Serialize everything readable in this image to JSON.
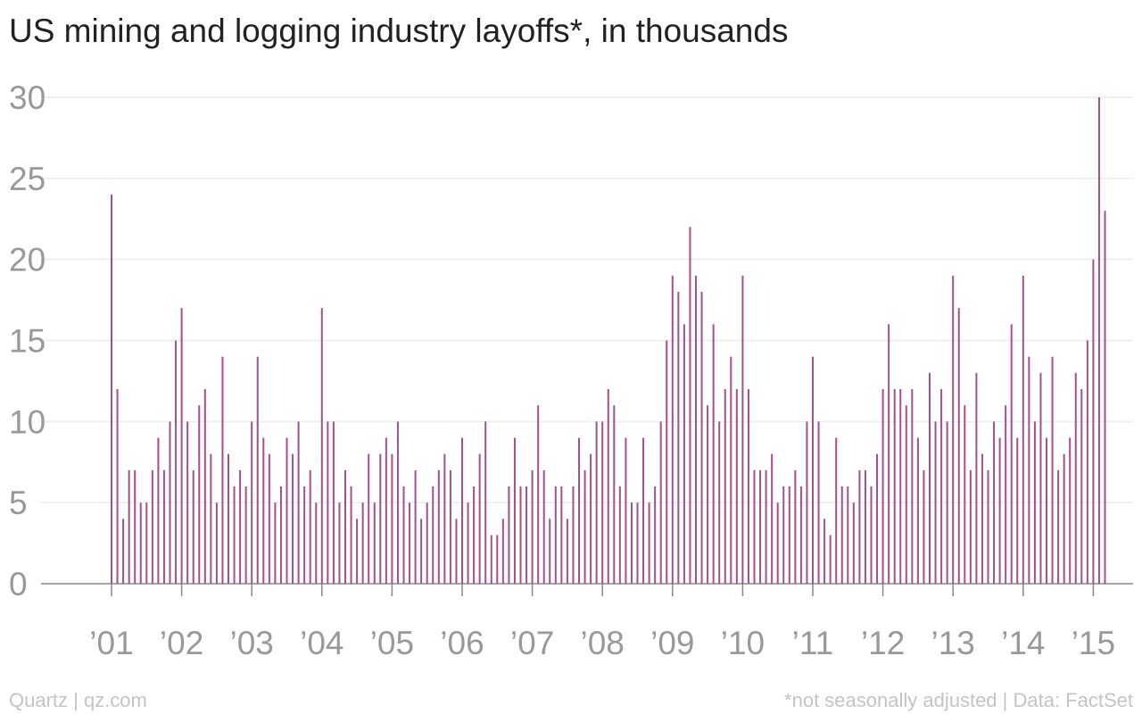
{
  "chart_data": {
    "type": "bar",
    "title": "US mining and logging industry layoffs*, in thousands",
    "xlabel": "",
    "ylabel": "",
    "ylim": [
      0,
      30
    ],
    "yticks": [
      "0",
      "5",
      "10",
      "15",
      "20",
      "25",
      "30"
    ],
    "xtick_labels": [
      "’01",
      "’02",
      "’03",
      "’04",
      "’05",
      "’06",
      "’07",
      "’08",
      "’09",
      "’10",
      "’11",
      "’12",
      "’13",
      "’14",
      "’15"
    ],
    "grid": true,
    "bar_color": "#a4508a",
    "x_start": "2001-01",
    "x_end": "2015-03",
    "x_unit": "month",
    "values": [
      24,
      12,
      4,
      7,
      7,
      5,
      5,
      7,
      9,
      7,
      10,
      15,
      17,
      10,
      7,
      11,
      12,
      8,
      5,
      14,
      8,
      6,
      7,
      6,
      10,
      14,
      9,
      8,
      5,
      6,
      9,
      8,
      10,
      6,
      7,
      5,
      17,
      10,
      10,
      5,
      7,
      6,
      4,
      5,
      8,
      5,
      8,
      9,
      8,
      10,
      6,
      5,
      7,
      4,
      5,
      6,
      7,
      8,
      7,
      4,
      9,
      5,
      6,
      8,
      10,
      3,
      3,
      4,
      6,
      9,
      6,
      6,
      7,
      11,
      7,
      4,
      6,
      6,
      4,
      6,
      9,
      7,
      8,
      10,
      10,
      12,
      11,
      6,
      9,
      5,
      5,
      9,
      5,
      6,
      10,
      15,
      19,
      18,
      16,
      22,
      19,
      18,
      11,
      16,
      10,
      12,
      14,
      12,
      19,
      12,
      7,
      7,
      7,
      8,
      5,
      6,
      6,
      7,
      6,
      10,
      14,
      10,
      4,
      3,
      9,
      6,
      6,
      5,
      7,
      7,
      6,
      8,
      12,
      16,
      12,
      12,
      11,
      12,
      9,
      7,
      13,
      10,
      12,
      10,
      19,
      17,
      11,
      7,
      13,
      8,
      7,
      10,
      9,
      11,
      16,
      9,
      19,
      14,
      10,
      13,
      9,
      14,
      7,
      8,
      9,
      13,
      12,
      15,
      20,
      30,
      23
    ]
  },
  "footer": {
    "source_left": "Quartz | qz.com",
    "source_right": "*not seasonally adjusted | Data: FactSet"
  }
}
